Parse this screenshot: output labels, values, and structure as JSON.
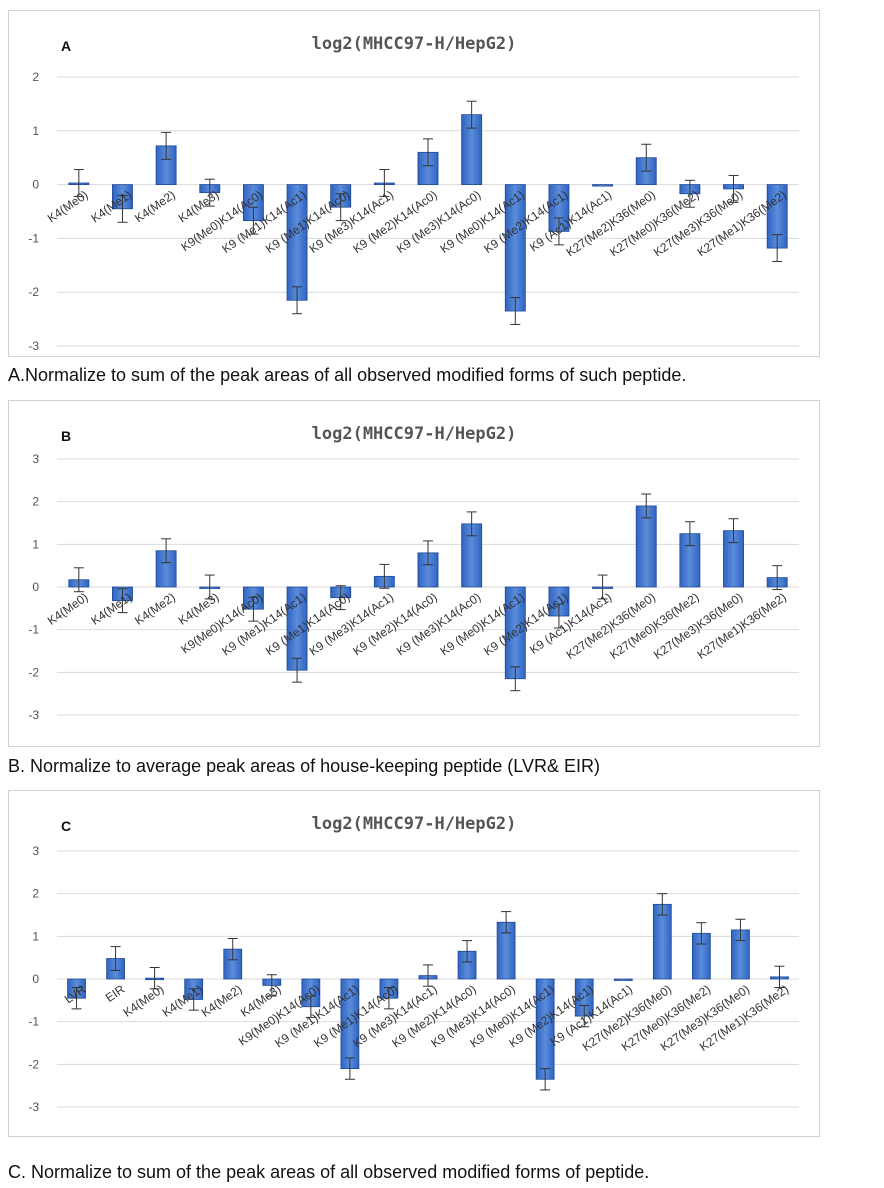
{
  "chart_data": [
    {
      "type": "bar",
      "panel_label": "A",
      "title": "log2(MHCC97-H/HepG2)",
      "ylim": [
        -3,
        2
      ],
      "yticks": [
        -3,
        -2,
        -1,
        0,
        1,
        2
      ],
      "grid": true,
      "categories": [
        "K4(Me0)",
        "K4(Me1)",
        "K4(Me2)",
        "K4(Me3)",
        "K9(Me0)K14(Ac0)",
        "K9 (Me1)K14(Ac1)",
        "K9 (Me1)K14(Ac0)",
        "K9 (Me3)K14(Ac1)",
        "K9 (Me2)K14(Ac0)",
        "K9 (Me3)K14(Ac0)",
        "K9 (Me0)K14(Ac1)",
        "K9 (Me2)K14(Ac1)",
        "K9 (Ac1)K14(Ac1)",
        "K27(Me2)K36(Me0)",
        "K27(Me0)K36(Me2)",
        "K27(Me3)K36(Me0)",
        "K27(Me1)K36(Me2)"
      ],
      "values": [
        0.03,
        -0.45,
        0.72,
        -0.15,
        -0.67,
        -2.15,
        -0.42,
        0.03,
        0.6,
        1.3,
        -2.35,
        -0.87,
        0.0,
        0.5,
        -0.17,
        -0.08,
        -1.18
      ],
      "errors": [
        0.25,
        0.25,
        0.25,
        0.25,
        0.25,
        0.25,
        0.25,
        0.25,
        0.25,
        0.25,
        0.25,
        0.25,
        0.0,
        0.25,
        0.25,
        0.25,
        0.25
      ],
      "caption": "A.Normalize to sum of the peak areas of all observed modified forms of such peptide."
    },
    {
      "type": "bar",
      "panel_label": "B",
      "title": "log2(MHCC97-H/HepG2)",
      "ylim": [
        -3,
        3
      ],
      "yticks": [
        -3,
        -2,
        -1,
        0,
        1,
        2,
        3
      ],
      "grid": true,
      "categories": [
        "K4(Me0)",
        "K4(Me1)",
        "K4(Me2)",
        "K4(Me3)",
        "K9(Me0)K14(Ac0)",
        "K9 (Me1)K14(Ac1)",
        "K9 (Me1)K14(Ac0)",
        "K9 (Me3)K14(Ac1)",
        "K9 (Me2)K14(Ac0)",
        "K9 (Me3)K14(Ac0)",
        "K9 (Me0)K14(Ac1)",
        "K9 (Me2)K14(Ac1)",
        "K9 (Ac1)K14(Ac1)",
        "K27(Me2)K36(Me0)",
        "K27(Me0)K36(Me2)",
        "K27(Me3)K36(Me0)",
        "K27(Me1)K36(Me2)"
      ],
      "values": [
        0.17,
        -0.32,
        0.85,
        0.0,
        -0.52,
        -1.95,
        -0.25,
        0.25,
        0.8,
        1.48,
        -2.15,
        -0.68,
        0.0,
        1.9,
        1.25,
        1.32,
        0.22
      ],
      "errors": [
        0.28,
        0.28,
        0.28,
        0.28,
        0.28,
        0.28,
        0.28,
        0.28,
        0.28,
        0.28,
        0.28,
        0.28,
        0.28,
        0.28,
        0.28,
        0.28,
        0.28
      ],
      "caption": "B. Normalize to average peak areas of house-keeping peptide (LVR& EIR)"
    },
    {
      "type": "bar",
      "panel_label": "C",
      "title": "log2(MHCC97-H/HepG2)",
      "ylim": [
        -3,
        3
      ],
      "yticks": [
        -3,
        -2,
        -1,
        0,
        1,
        2,
        3
      ],
      "grid": true,
      "categories": [
        "LVR",
        "EIR",
        "K4(Me0)",
        "K4(Me1)",
        "K4(Me2)",
        "K4(Me3)",
        "K9(Me0)K14(Ac0)",
        "K9 (Me1)K14(Ac1)",
        "K9 (Me1)K14(Ac0)",
        "K9 (Me3)K14(Ac1)",
        "K9 (Me2)K14(Ac0)",
        "K9 (Me3)K14(Ac0)",
        "K9 (Me0)K14(Ac1)",
        "K9 (Me2)K14(Ac1)",
        "K9 (Ac1)K14(Ac1)",
        "K27(Me2)K36(Me0)",
        "K27(Me0)K36(Me2)",
        "K27(Me3)K36(Me0)",
        "K27(Me1)K36(Me2)"
      ],
      "values": [
        -0.45,
        0.48,
        0.02,
        -0.48,
        0.7,
        -0.15,
        -0.65,
        -2.1,
        -0.45,
        0.08,
        0.65,
        1.33,
        -2.35,
        -0.87,
        0.0,
        1.75,
        1.07,
        1.15,
        0.05
      ],
      "errors": [
        0.25,
        0.28,
        0.25,
        0.25,
        0.25,
        0.25,
        0.25,
        0.25,
        0.25,
        0.25,
        0.25,
        0.25,
        0.25,
        0.25,
        0.0,
        0.25,
        0.25,
        0.25,
        0.25
      ],
      "caption": "C. Normalize to sum of the peak areas of all observed modified forms of peptide."
    }
  ],
  "colors": {
    "bar_top": "#5b8ddb",
    "bar_mid": "#2f63c0",
    "bar_edge": "#1f4a99",
    "grid": "#d9d9d9",
    "error": "#333333"
  }
}
